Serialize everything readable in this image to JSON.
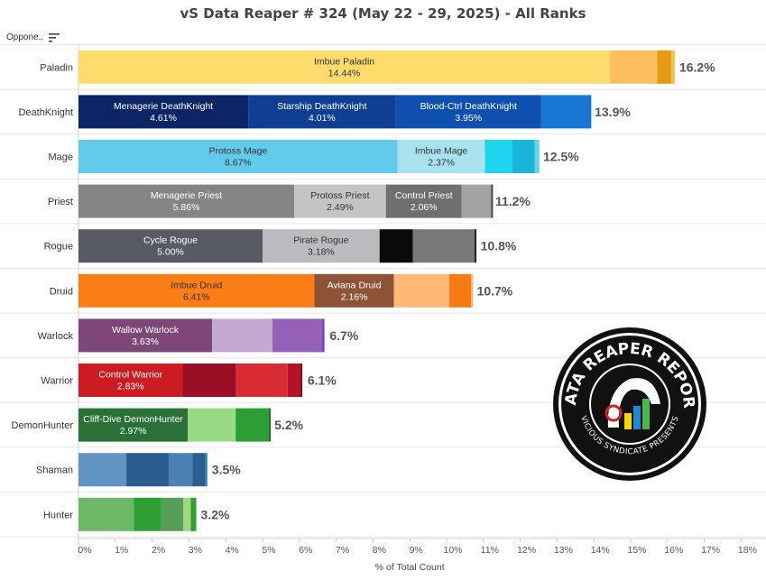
{
  "title": "vS Data Reaper # 324 (May 22 - 29, 2025) - All Ranks",
  "opponent_header": {
    "label": "Oppone..",
    "icon": "sort-icon"
  },
  "logo": {
    "text_top": "DATA REAPER REPORT",
    "text_bottom": "VICIOUS SYNDICATE PRESENTS"
  },
  "chart_data": {
    "type": "bar",
    "orientation": "horizontal",
    "stacked": true,
    "title": "vS Data Reaper # 324 (May 22 - 29, 2025) - All Ranks",
    "xlabel": "% of Total Count",
    "ylabel": "Oppone..",
    "xlim": [
      0,
      18
    ],
    "xticks": [
      "0%",
      "1%",
      "2%",
      "3%",
      "4%",
      "5%",
      "6%",
      "7%",
      "8%",
      "9%",
      "10%",
      "11%",
      "12%",
      "13%",
      "14%",
      "15%",
      "16%",
      "17%",
      "18%"
    ],
    "grid": true,
    "categories": [
      "Paladin",
      "DeathKnight",
      "Mage",
      "Priest",
      "Rogue",
      "Druid",
      "Warlock",
      "Warrior",
      "DemonHunter",
      "Shaman",
      "Hunter"
    ],
    "bars": [
      {
        "category": "Paladin",
        "total": 16.2,
        "total_label": "16.2%",
        "segments": [
          {
            "label": "Imbue Paladin",
            "value": 14.44,
            "value_label": "14.44%",
            "color": "#fedc6b",
            "text": "#333333"
          },
          {
            "label": "",
            "value": 1.28,
            "color": "#fdbf5f"
          },
          {
            "label": "",
            "value": 0.38,
            "color": "#e49a12"
          },
          {
            "label": "",
            "value": 0.1,
            "color": "#f3c44d"
          }
        ]
      },
      {
        "category": "DeathKnight",
        "total": 13.9,
        "total_label": "13.9%",
        "segments": [
          {
            "label": "Menagerie DeathKnight",
            "value": 4.61,
            "value_label": "4.61%",
            "color": "#0c2566",
            "text": "#ffffff"
          },
          {
            "label": "Starship DeathKnight",
            "value": 4.01,
            "value_label": "4.01%",
            "color": "#0e3f93",
            "text": "#ffffff"
          },
          {
            "label": "Blood-Ctrl DeathKnight",
            "value": 3.95,
            "value_label": "3.95%",
            "color": "#0d50b0",
            "text": "#ffffff"
          },
          {
            "label": "",
            "value": 1.36,
            "color": "#1776d4"
          }
        ]
      },
      {
        "category": "Mage",
        "total": 12.5,
        "total_label": "12.5%",
        "segments": [
          {
            "label": "Protoss Mage",
            "value": 8.67,
            "value_label": "8.67%",
            "color": "#62cbeb",
            "text": "#333333"
          },
          {
            "label": "Imbue Mage",
            "value": 2.37,
            "value_label": "2.37%",
            "color": "#a9e2ef",
            "text": "#333333"
          },
          {
            "label": "",
            "value": 0.75,
            "color": "#1dd6ee"
          },
          {
            "label": "",
            "value": 0.6,
            "color": "#1ab4d9"
          },
          {
            "label": "",
            "value": 0.13,
            "color": "#6fcfe8"
          }
        ]
      },
      {
        "category": "Priest",
        "total": 11.2,
        "total_label": "11.2%",
        "segments": [
          {
            "label": "Menagerie Priest",
            "value": 5.86,
            "value_label": "5.86%",
            "color": "#858585",
            "text": "#ffffff"
          },
          {
            "label": "Protoss Priest",
            "value": 2.49,
            "value_label": "2.49%",
            "color": "#c4c4c4",
            "text": "#333333"
          },
          {
            "label": "Control Priest",
            "value": 2.06,
            "value_label": "2.06%",
            "color": "#6f6f6f",
            "text": "#ffffff"
          },
          {
            "label": "",
            "value": 0.8,
            "color": "#a3a3a3"
          },
          {
            "label": "",
            "value": 0.05,
            "color": "#444444"
          }
        ]
      },
      {
        "category": "Rogue",
        "total": 10.8,
        "total_label": "10.8%",
        "segments": [
          {
            "label": "Cycle Rogue",
            "value": 5.0,
            "value_label": "5.00%",
            "color": "#595b64",
            "text": "#ffffff"
          },
          {
            "label": "Pirate Rogue",
            "value": 3.18,
            "value_label": "3.18%",
            "color": "#b9bbbe",
            "text": "#333333"
          },
          {
            "label": "",
            "value": 0.9,
            "color": "#0a0a0a"
          },
          {
            "label": "",
            "value": 1.68,
            "color": "#787878"
          },
          {
            "label": "",
            "value": 0.05,
            "color": "#222222"
          }
        ]
      },
      {
        "category": "Druid",
        "total": 10.7,
        "total_label": "10.7%",
        "segments": [
          {
            "label": "Imbue Druid",
            "value": 6.41,
            "value_label": "6.41%",
            "color": "#fb7d16",
            "text": "#333333"
          },
          {
            "label": "Aviana Druid",
            "value": 2.16,
            "value_label": "2.16%",
            "color": "#8d5336",
            "text": "#ffffff"
          },
          {
            "label": "",
            "value": 1.5,
            "color": "#fdb877"
          },
          {
            "label": "",
            "value": 0.6,
            "color": "#f77b15"
          },
          {
            "label": "",
            "value": 0.05,
            "color": "#fdb877"
          }
        ]
      },
      {
        "category": "Warlock",
        "total": 6.7,
        "total_label": "6.7%",
        "segments": [
          {
            "label": "Wallow Warlock",
            "value": 3.63,
            "value_label": "3.63%",
            "color": "#7d4877",
            "text": "#ffffff"
          },
          {
            "label": "",
            "value": 1.64,
            "color": "#c3a8d0"
          },
          {
            "label": "",
            "value": 1.35,
            "color": "#9460b8"
          },
          {
            "label": "",
            "value": 0.06,
            "color": "#7f2fd0"
          }
        ]
      },
      {
        "category": "Warrior",
        "total": 6.1,
        "total_label": "6.1%",
        "segments": [
          {
            "label": "Control Warrior",
            "value": 2.83,
            "value_label": "2.83%",
            "color": "#cc1c22",
            "text": "#ffffff"
          },
          {
            "label": "",
            "value": 1.45,
            "color": "#9c0e26"
          },
          {
            "label": "",
            "value": 1.4,
            "color": "#d72b32"
          },
          {
            "label": "",
            "value": 0.35,
            "color": "#b3122a"
          },
          {
            "label": "",
            "value": 0.05,
            "color": "#7d0a1e"
          }
        ]
      },
      {
        "category": "DemonHunter",
        "total": 5.2,
        "total_label": "5.2%",
        "segments": [
          {
            "label": "Cliff-Dive DemonHunter",
            "value": 2.97,
            "value_label": "2.97%",
            "color": "#2a7138",
            "text": "#ffffff"
          },
          {
            "label": "",
            "value": 1.3,
            "color": "#9ad983"
          },
          {
            "label": "",
            "value": 0.9,
            "color": "#2d9d35"
          },
          {
            "label": "",
            "value": 0.05,
            "color": "#1e6b28"
          }
        ]
      },
      {
        "category": "Shaman",
        "total": 3.5,
        "total_label": "3.5%",
        "segments": [
          {
            "label": "",
            "value": 1.3,
            "color": "#6294c3"
          },
          {
            "label": "",
            "value": 1.15,
            "color": "#2d5d8e"
          },
          {
            "label": "",
            "value": 0.65,
            "color": "#4b82b5"
          },
          {
            "label": "",
            "value": 0.35,
            "color": "#2d5d8e"
          },
          {
            "label": "",
            "value": 0.05,
            "color": "#1c8fb0"
          }
        ]
      },
      {
        "category": "Hunter",
        "total": 3.2,
        "total_label": "3.2%",
        "segments": [
          {
            "label": "",
            "value": 1.5,
            "color": "#6cb866"
          },
          {
            "label": "",
            "value": 0.75,
            "color": "#2f9e34"
          },
          {
            "label": "",
            "value": 0.6,
            "color": "#579f57"
          },
          {
            "label": "",
            "value": 0.2,
            "color": "#a1d47f"
          },
          {
            "label": "",
            "value": 0.15,
            "color": "#2f9e34"
          }
        ]
      }
    ]
  }
}
